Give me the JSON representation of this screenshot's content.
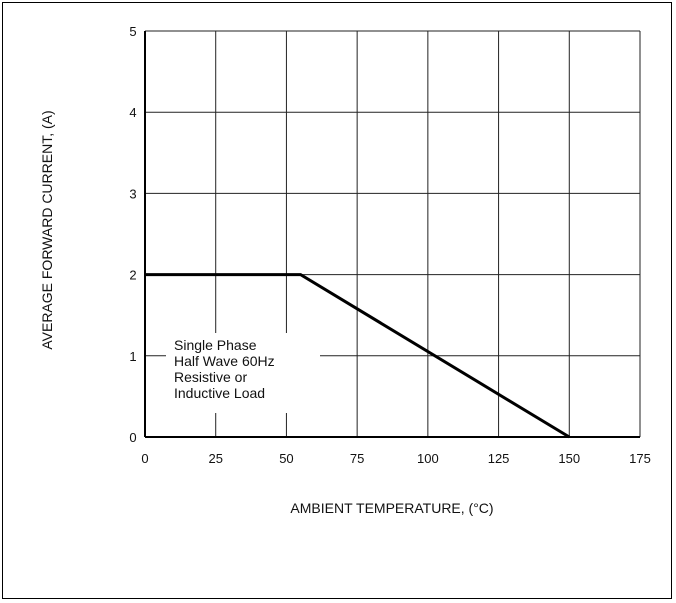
{
  "chart_data": {
    "type": "line",
    "title": "",
    "xlabel": "AMBIENT TEMPERATURE, (°C)",
    "ylabel": "AVERAGE FORWARD CURRENT, (A)",
    "xlim": [
      0,
      175
    ],
    "ylim": [
      0,
      5
    ],
    "x_ticks": [
      0,
      25,
      50,
      75,
      100,
      125,
      150,
      175
    ],
    "y_ticks": [
      0,
      1,
      2,
      3,
      4,
      5
    ],
    "grid": true,
    "legend": "none",
    "series": [
      {
        "x": [
          0,
          55,
          150
        ],
        "y": [
          2,
          2,
          0
        ],
        "color": "#000000"
      }
    ],
    "annotation": [
      "Single Phase",
      "Half Wave 60Hz",
      "Resistive or",
      "Inductive Load"
    ]
  }
}
